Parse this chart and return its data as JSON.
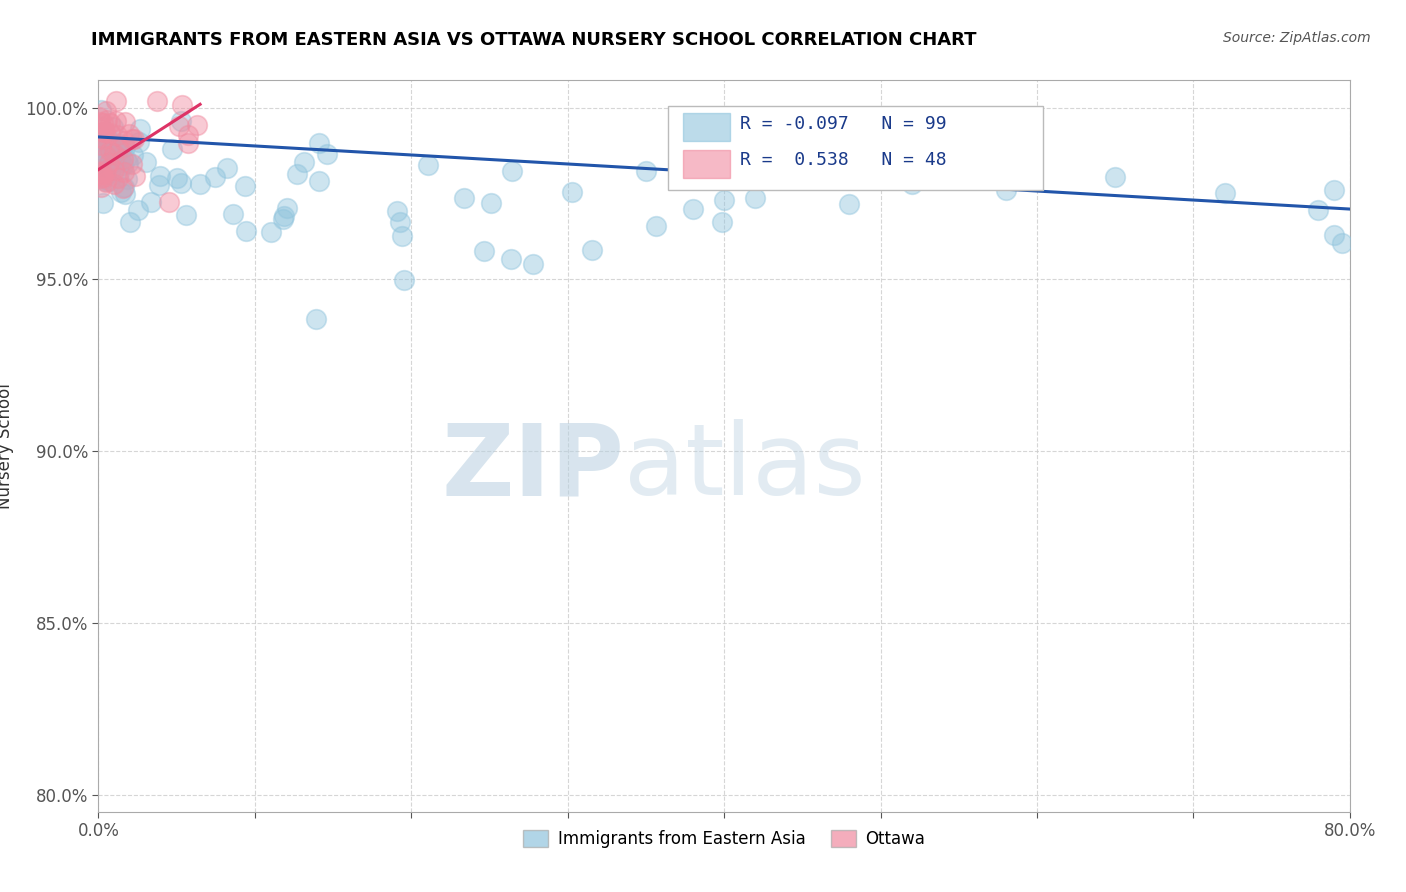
{
  "title": "IMMIGRANTS FROM EASTERN ASIA VS OTTAWA NURSERY SCHOOL CORRELATION CHART",
  "source": "Source: ZipAtlas.com",
  "ylabel": "Nursery School",
  "xlim": [
    0.0,
    0.8
  ],
  "ylim": [
    0.795,
    1.008
  ],
  "xtick_positions": [
    0.0,
    0.1,
    0.2,
    0.3,
    0.4,
    0.5,
    0.6,
    0.7,
    0.8
  ],
  "xticklabels": [
    "0.0%",
    "",
    "",
    "",
    "",
    "",
    "",
    "",
    "80.0%"
  ],
  "ytick_positions": [
    0.8,
    0.85,
    0.9,
    0.95,
    1.0
  ],
  "yticklabels": [
    "80.0%",
    "85.0%",
    "90.0%",
    "95.0%",
    "100.0%"
  ],
  "legend_r_blue": "-0.097",
  "legend_n_blue": "99",
  "legend_r_pink": "0.538",
  "legend_n_pink": "48",
  "blue_color": "#90c4dd",
  "pink_color": "#f08ba0",
  "blue_line_color": "#2255aa",
  "pink_line_color": "#dd3366",
  "watermark_zip": "ZIP",
  "watermark_atlas": "atlas",
  "blue_line_x": [
    0.0,
    0.8
  ],
  "blue_line_y": [
    0.9915,
    0.9705
  ],
  "pink_line_x": [
    0.0,
    0.065
  ],
  "pink_line_y": [
    0.982,
    1.001
  ]
}
